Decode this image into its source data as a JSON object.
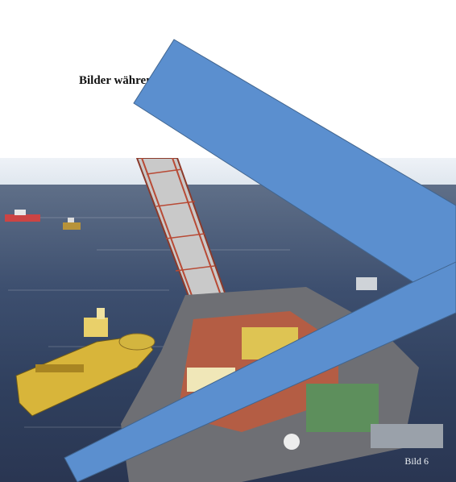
{
  "slide": {
    "title": "Bilder während der Nachricht",
    "caption": "Bild 6"
  },
  "colors": {
    "arrow_fill": "#5b8fcf",
    "arrow_stroke": "#41658f",
    "sea_dark": "#2f3f5d",
    "ship_yellow": "#d8b53a"
  }
}
